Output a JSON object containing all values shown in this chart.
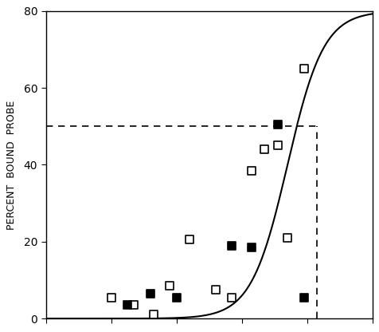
{
  "ylabel": "PERCENT  BOUND  PROBE",
  "ylim": [
    0,
    80
  ],
  "yticks": [
    0,
    20,
    40,
    60,
    80
  ],
  "xlim_data": [
    0,
    1.0
  ],
  "dashed_hline": 50,
  "dashed_vline_x": 0.83,
  "curve_color": "#000000",
  "open_squares_x": [
    0.2,
    0.27,
    0.33,
    0.38,
    0.44,
    0.52,
    0.57,
    0.63,
    0.67,
    0.71,
    0.74,
    0.79
  ],
  "open_squares_y": [
    5.5,
    3.5,
    1.0,
    8.5,
    20.5,
    7.5,
    5.5,
    38.5,
    44.0,
    45.0,
    21.0,
    65.0
  ],
  "filled_squares_x": [
    0.25,
    0.32,
    0.4,
    0.57,
    0.63,
    0.71,
    0.79
  ],
  "filled_squares_y": [
    3.5,
    6.5,
    5.5,
    19.0,
    18.5,
    50.5,
    5.5
  ],
  "background_color": "#ffffff",
  "marker_size": 7,
  "curve_xlim": [
    0,
    1.1
  ],
  "curve_k": 18,
  "curve_x0": 0.74,
  "curve_ymax": 80
}
